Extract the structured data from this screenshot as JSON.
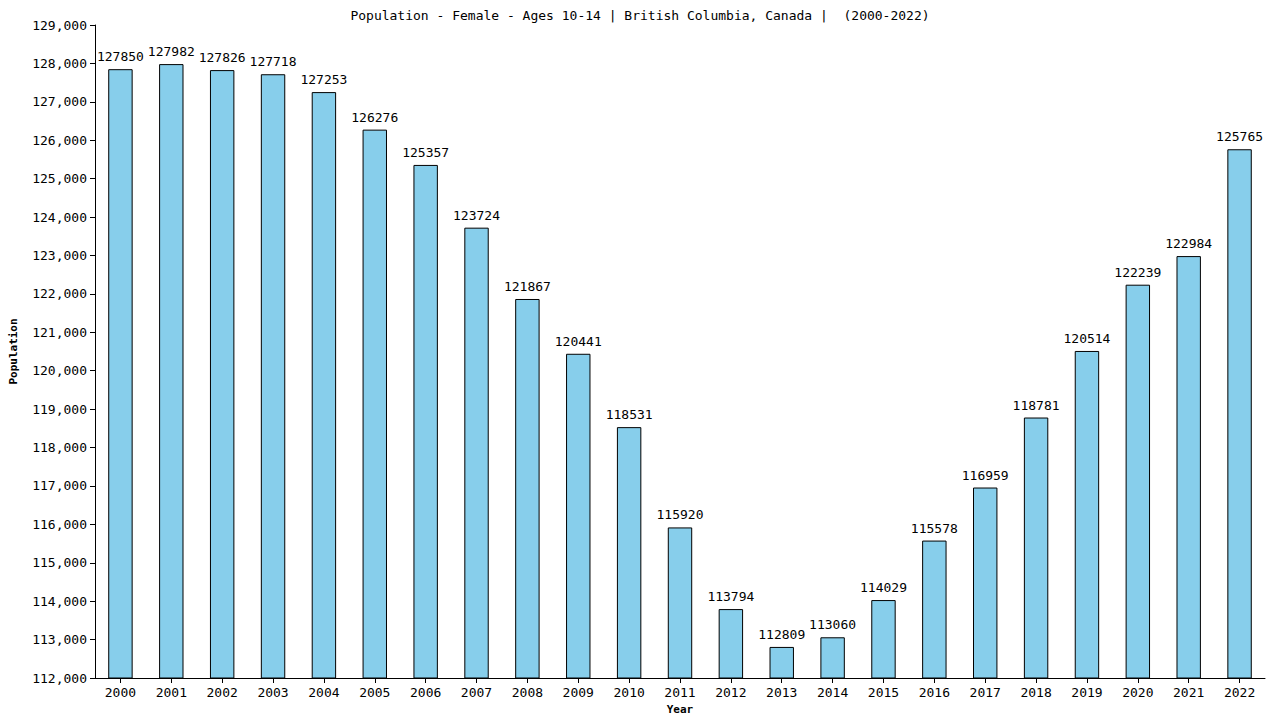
{
  "chart_data": {
    "type": "bar",
    "title": "Population - Female - Ages 10-14 | British Columbia, Canada |  (2000-2022)",
    "x_label": "Year",
    "y_label": "Population",
    "categories": [
      "2000",
      "2001",
      "2002",
      "2003",
      "2004",
      "2005",
      "2006",
      "2007",
      "2008",
      "2009",
      "2010",
      "2011",
      "2012",
      "2013",
      "2014",
      "2015",
      "2016",
      "2017",
      "2018",
      "2019",
      "2020",
      "2021",
      "2022"
    ],
    "values": [
      127850,
      127982,
      127826,
      127718,
      127253,
      126276,
      125357,
      123724,
      121867,
      120441,
      118531,
      115920,
      113794,
      112809,
      113060,
      114029,
      115578,
      116959,
      118781,
      120514,
      122239,
      122984,
      125765
    ],
    "color": "#87ceeb",
    "ylim": [
      112000,
      129000
    ],
    "yticks": [
      112000,
      113000,
      114000,
      115000,
      116000,
      117000,
      118000,
      119000,
      120000,
      121000,
      122000,
      123000,
      124000,
      125000,
      126000,
      127000,
      128000,
      129000
    ],
    "grid": false,
    "data_labels": true
  }
}
